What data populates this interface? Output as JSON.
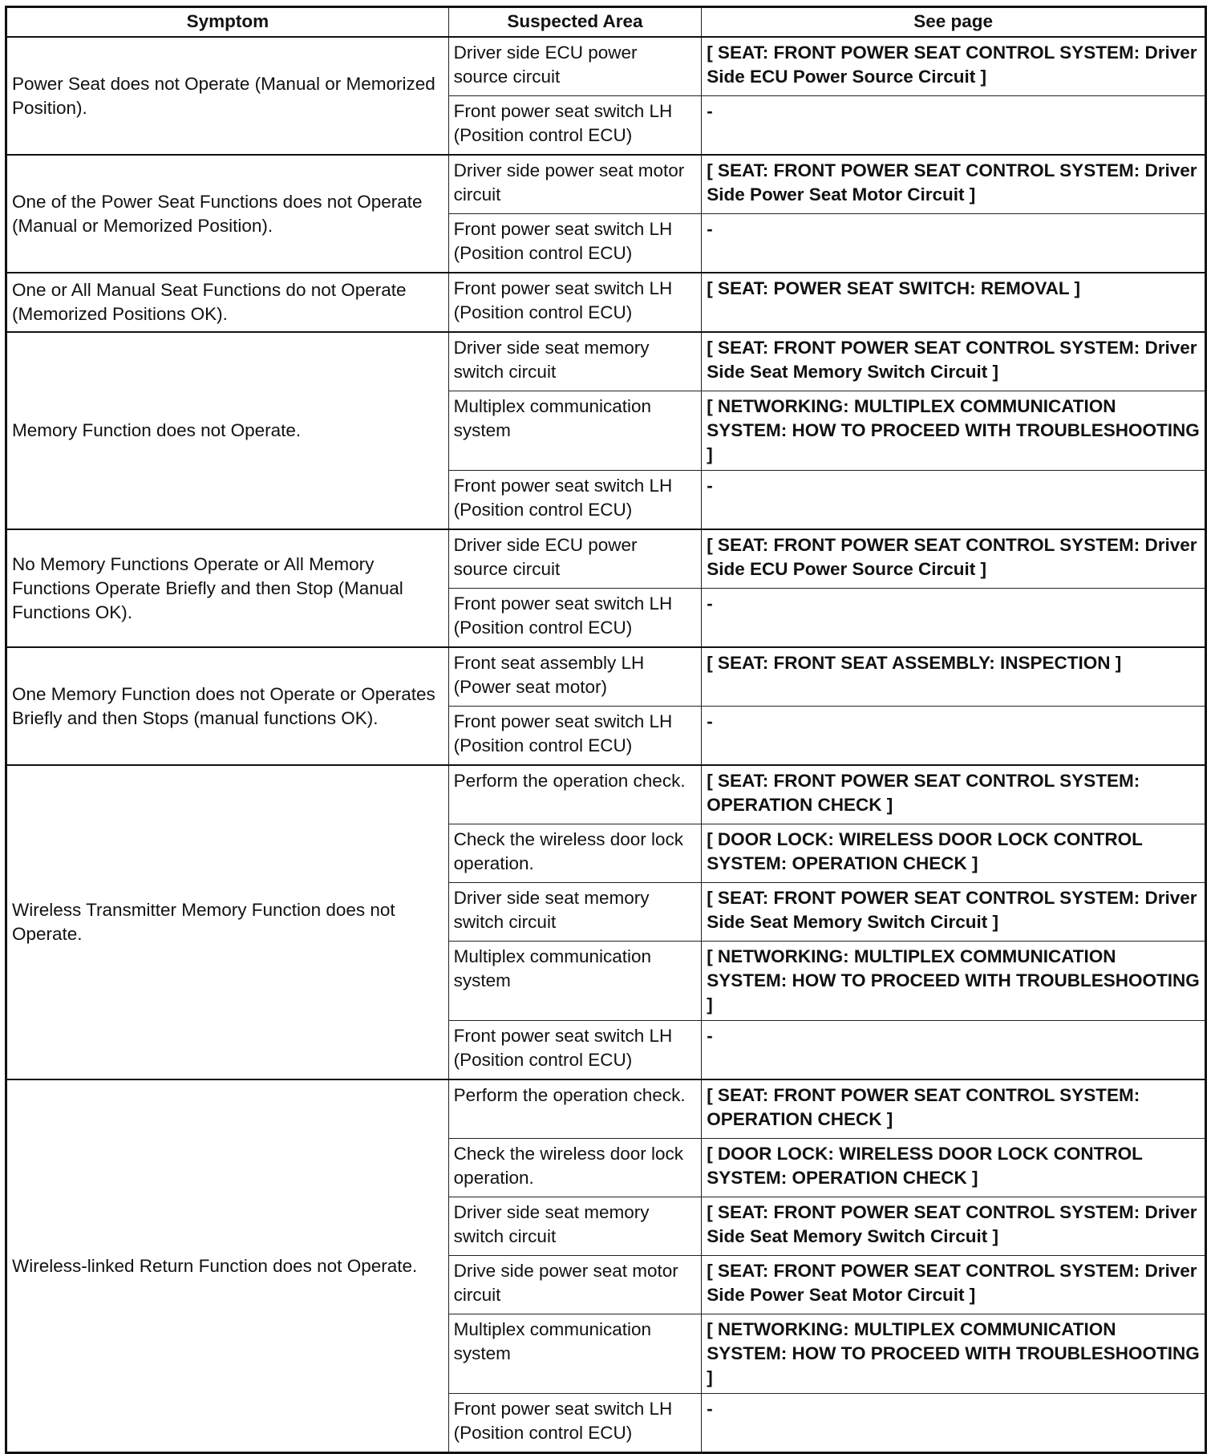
{
  "headers": [
    "Symptom",
    "Suspected Area",
    "See page"
  ],
  "groups": [
    {
      "symptom": "Power Seat does not Operate (Manual or Memorized Position).",
      "rows": [
        {
          "area": "Driver side ECU power source circuit",
          "page": "[ SEAT: FRONT POWER SEAT CONTROL SYSTEM: Driver Side ECU Power Source Circuit ]"
        },
        {
          "area": "Front power seat switch LH (Position control ECU)",
          "page": "-"
        }
      ]
    },
    {
      "symptom": "One of the Power Seat Functions does not Operate (Manual or Memorized Position).",
      "rows": [
        {
          "area": "Driver side power seat motor circuit",
          "page": "[ SEAT: FRONT POWER SEAT CONTROL SYSTEM: Driver Side Power Seat Motor Circuit ]"
        },
        {
          "area": "Front power seat switch LH (Position control ECU)",
          "page": "-"
        }
      ]
    },
    {
      "symptom": "One or All Manual Seat Functions do not Operate (Memorized Positions OK).",
      "rows": [
        {
          "area": "Front power seat switch LH (Position control ECU)",
          "page": "[ SEAT: POWER SEAT SWITCH: REMOVAL ]"
        }
      ]
    },
    {
      "symptom": "Memory Function does not Operate.",
      "rows": [
        {
          "area": "Driver side seat memory switch circuit",
          "page": "[ SEAT: FRONT POWER SEAT CONTROL SYSTEM: Driver Side Seat Memory Switch Circuit ]"
        },
        {
          "area": "Multiplex communication system",
          "page": "[ NETWORKING: MULTIPLEX COMMUNICATION SYSTEM: HOW TO PROCEED WITH TROUBLESHOOTING ]"
        },
        {
          "area": "Front power seat switch LH (Position control ECU)",
          "page": "-"
        }
      ]
    },
    {
      "symptom": "No Memory Functions Operate or All Memory Functions Operate Briefly and then Stop (Manual Functions OK).",
      "rows": [
        {
          "area": "Driver side ECU power source circuit",
          "page": "[ SEAT: FRONT POWER SEAT CONTROL SYSTEM: Driver Side ECU Power Source Circuit ]"
        },
        {
          "area": "Front power seat switch LH (Position control ECU)",
          "page": "-"
        }
      ]
    },
    {
      "symptom": "One Memory Function does not Operate or Operates Briefly and then Stops (manual functions OK).",
      "rows": [
        {
          "area": "Front seat assembly LH (Power seat motor)",
          "page": "[ SEAT: FRONT SEAT ASSEMBLY: INSPECTION ]"
        },
        {
          "area": "Front power seat switch LH (Position control ECU)",
          "page": "-"
        }
      ]
    },
    {
      "symptom": "Wireless Transmitter Memory Function does not Operate.",
      "rows": [
        {
          "area": "Perform the operation check.",
          "page": "[ SEAT: FRONT POWER SEAT CONTROL SYSTEM: OPERATION CHECK ]"
        },
        {
          "area": "Check the wireless door lock operation.",
          "page": "[ DOOR LOCK: WIRELESS DOOR LOCK CONTROL SYSTEM: OPERATION CHECK ]"
        },
        {
          "area": "Driver side seat memory switch circuit",
          "page": "[ SEAT: FRONT POWER SEAT CONTROL SYSTEM: Driver Side Seat Memory Switch Circuit ]"
        },
        {
          "area": "Multiplex communication system",
          "page": "[ NETWORKING: MULTIPLEX COMMUNICATION SYSTEM: HOW TO PROCEED WITH TROUBLESHOOTING ]"
        },
        {
          "area": "Front power seat switch LH (Position control ECU)",
          "page": "-"
        }
      ]
    },
    {
      "symptom": "Wireless-linked Return Function does not Operate.",
      "rows": [
        {
          "area": "Perform the operation check.",
          "page": "[ SEAT: FRONT POWER SEAT CONTROL SYSTEM: OPERATION CHECK ]"
        },
        {
          "area": "Check the wireless door lock operation.",
          "page": "[ DOOR LOCK: WIRELESS DOOR LOCK CONTROL SYSTEM: OPERATION CHECK ]"
        },
        {
          "area": "Driver side seat memory switch circuit",
          "page": "[ SEAT: FRONT POWER SEAT CONTROL SYSTEM: Driver Side Seat Memory Switch Circuit ]"
        },
        {
          "area": "Drive side power seat motor circuit",
          "page": "[ SEAT: FRONT POWER SEAT CONTROL SYSTEM: Driver Side Power Seat Motor Circuit ]"
        },
        {
          "area": "Multiplex communication system",
          "page": "[ NETWORKING: MULTIPLEX COMMUNICATION SYSTEM: HOW TO PROCEED WITH TROUBLESHOOTING ]"
        },
        {
          "area": "Front power seat switch LH (Position control ECU)",
          "page": "-"
        }
      ]
    }
  ]
}
